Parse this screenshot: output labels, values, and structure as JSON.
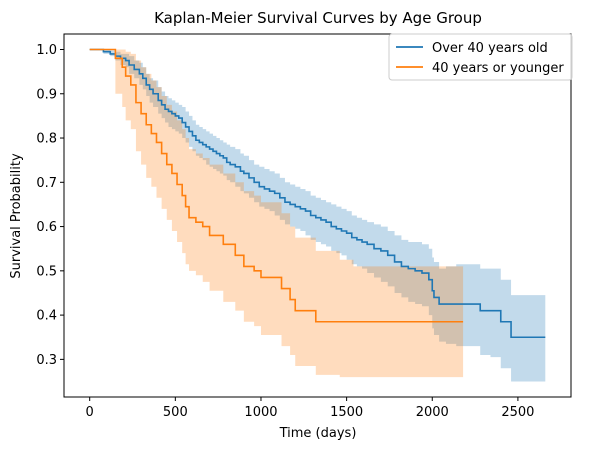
{
  "chart_data": {
    "type": "line",
    "title": "Kaplan-Meier Survival Curves by Age Group",
    "xlabel": "Time (days)",
    "ylabel": "Survival Probability",
    "xlim": [
      -150,
      2810
    ],
    "ylim": [
      0.215,
      1.035
    ],
    "xticks": [
      0,
      500,
      1000,
      1500,
      2000,
      2500
    ],
    "yticks": [
      0.3,
      0.4,
      0.5,
      0.6,
      0.7,
      0.8,
      0.9,
      1.0
    ],
    "grid": false,
    "legend_position": "top-right",
    "series": [
      {
        "name": "Over 40 years old",
        "color": "#1f77b4",
        "fill_color": "#1f77b4",
        "x": [
          0,
          80,
          120,
          150,
          180,
          210,
          230,
          260,
          290,
          310,
          330,
          350,
          370,
          400,
          420,
          440,
          460,
          480,
          500,
          520,
          540,
          560,
          580,
          600,
          620,
          640,
          660,
          680,
          700,
          720,
          740,
          760,
          780,
          800,
          820,
          850,
          880,
          900,
          930,
          960,
          990,
          1020,
          1050,
          1080,
          1110,
          1140,
          1170,
          1200,
          1230,
          1260,
          1290,
          1320,
          1350,
          1380,
          1410,
          1440,
          1470,
          1500,
          1530,
          1560,
          1590,
          1620,
          1660,
          1700,
          1740,
          1780,
          1820,
          1860,
          1900,
          1940,
          1980,
          2000,
          2010,
          2040,
          2080,
          2140,
          2200,
          2280,
          2340,
          2400,
          2460,
          2660
        ],
        "y": [
          1.0,
          0.995,
          0.99,
          0.985,
          0.98,
          0.975,
          0.965,
          0.955,
          0.945,
          0.935,
          0.92,
          0.91,
          0.9,
          0.885,
          0.875,
          0.865,
          0.86,
          0.855,
          0.85,
          0.845,
          0.835,
          0.825,
          0.815,
          0.805,
          0.795,
          0.79,
          0.785,
          0.78,
          0.775,
          0.77,
          0.765,
          0.76,
          0.755,
          0.745,
          0.74,
          0.735,
          0.725,
          0.72,
          0.71,
          0.7,
          0.69,
          0.685,
          0.68,
          0.675,
          0.665,
          0.655,
          0.65,
          0.645,
          0.64,
          0.635,
          0.625,
          0.62,
          0.615,
          0.61,
          0.6,
          0.595,
          0.59,
          0.585,
          0.575,
          0.57,
          0.565,
          0.56,
          0.55,
          0.545,
          0.535,
          0.52,
          0.51,
          0.505,
          0.5,
          0.495,
          0.48,
          0.455,
          0.44,
          0.425,
          0.425,
          0.425,
          0.425,
          0.41,
          0.41,
          0.385,
          0.35,
          0.35
        ],
        "ci_lower": [
          1.0,
          0.99,
          0.985,
          0.975,
          0.965,
          0.96,
          0.945,
          0.935,
          0.92,
          0.91,
          0.895,
          0.88,
          0.87,
          0.855,
          0.845,
          0.835,
          0.825,
          0.82,
          0.815,
          0.81,
          0.8,
          0.79,
          0.78,
          0.77,
          0.76,
          0.755,
          0.75,
          0.74,
          0.735,
          0.73,
          0.725,
          0.72,
          0.715,
          0.705,
          0.7,
          0.69,
          0.68,
          0.675,
          0.665,
          0.655,
          0.645,
          0.64,
          0.635,
          0.625,
          0.615,
          0.605,
          0.6,
          0.595,
          0.59,
          0.58,
          0.57,
          0.565,
          0.56,
          0.555,
          0.545,
          0.54,
          0.535,
          0.525,
          0.515,
          0.51,
          0.505,
          0.495,
          0.485,
          0.475,
          0.465,
          0.45,
          0.44,
          0.43,
          0.425,
          0.42,
          0.4,
          0.37,
          0.355,
          0.34,
          0.335,
          0.33,
          0.33,
          0.31,
          0.305,
          0.28,
          0.25,
          0.25
        ],
        "ci_upper": [
          1.0,
          1.0,
          0.998,
          0.995,
          0.99,
          0.99,
          0.985,
          0.975,
          0.97,
          0.96,
          0.945,
          0.935,
          0.93,
          0.915,
          0.905,
          0.895,
          0.89,
          0.885,
          0.88,
          0.875,
          0.87,
          0.86,
          0.85,
          0.84,
          0.83,
          0.825,
          0.82,
          0.815,
          0.81,
          0.805,
          0.8,
          0.795,
          0.79,
          0.785,
          0.78,
          0.775,
          0.765,
          0.76,
          0.75,
          0.74,
          0.735,
          0.73,
          0.725,
          0.72,
          0.71,
          0.7,
          0.695,
          0.69,
          0.685,
          0.68,
          0.67,
          0.665,
          0.66,
          0.655,
          0.65,
          0.645,
          0.64,
          0.635,
          0.625,
          0.62,
          0.615,
          0.61,
          0.605,
          0.6,
          0.59,
          0.58,
          0.57,
          0.565,
          0.565,
          0.56,
          0.55,
          0.53,
          0.52,
          0.505,
          0.51,
          0.515,
          0.515,
          0.505,
          0.505,
          0.48,
          0.445,
          0.445
        ]
      },
      {
        "name": "40 years or younger",
        "color": "#ff7f0e",
        "fill_color": "#ff7f0e",
        "x": [
          0,
          150,
          190,
          210,
          240,
          270,
          300,
          330,
          360,
          390,
          420,
          450,
          480,
          510,
          540,
          560,
          580,
          620,
          660,
          700,
          780,
          850,
          900,
          960,
          1000,
          1120,
          1170,
          1200,
          1320,
          1460,
          1540,
          2180
        ],
        "y": [
          1.0,
          0.98,
          0.96,
          0.94,
          0.92,
          0.88,
          0.855,
          0.83,
          0.81,
          0.79,
          0.765,
          0.74,
          0.72,
          0.695,
          0.67,
          0.645,
          0.62,
          0.61,
          0.6,
          0.58,
          0.56,
          0.535,
          0.51,
          0.5,
          0.485,
          0.46,
          0.435,
          0.41,
          0.385,
          0.385,
          0.385,
          0.385
        ],
        "ci_lower": [
          1.0,
          0.9,
          0.87,
          0.84,
          0.82,
          0.77,
          0.74,
          0.71,
          0.69,
          0.665,
          0.64,
          0.615,
          0.59,
          0.565,
          0.54,
          0.515,
          0.5,
          0.49,
          0.475,
          0.455,
          0.43,
          0.41,
          0.385,
          0.375,
          0.355,
          0.33,
          0.31,
          0.285,
          0.265,
          0.26,
          0.26,
          0.26
        ],
        "ci_upper": [
          1.0,
          1.0,
          1.0,
          0.995,
          0.99,
          0.975,
          0.96,
          0.945,
          0.93,
          0.915,
          0.895,
          0.875,
          0.86,
          0.84,
          0.82,
          0.8,
          0.775,
          0.765,
          0.755,
          0.74,
          0.72,
          0.7,
          0.68,
          0.67,
          0.655,
          0.63,
          0.6,
          0.575,
          0.545,
          0.525,
          0.51,
          0.51
        ]
      }
    ]
  }
}
